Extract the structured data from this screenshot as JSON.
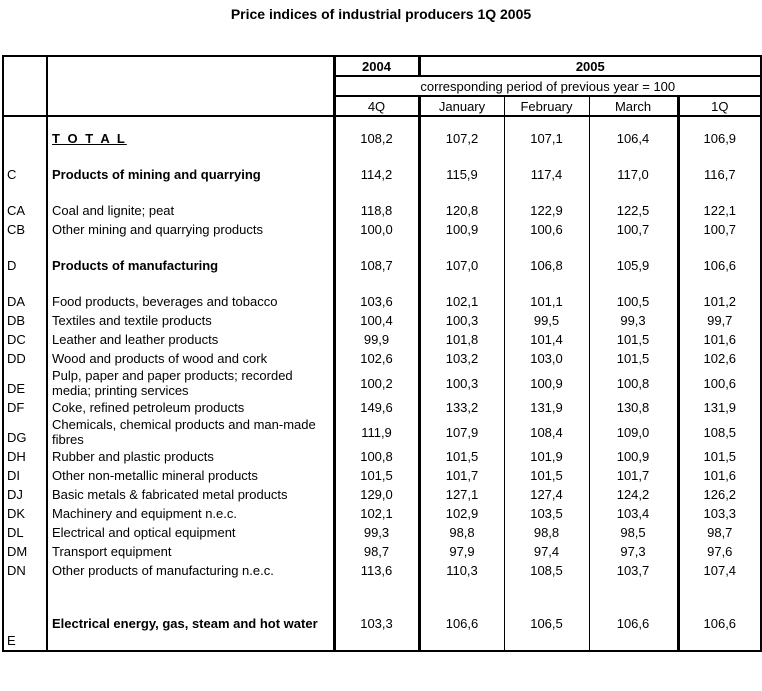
{
  "title": "Price indices of industrial producers 1Q 2005",
  "colors": {
    "text": "#000000",
    "background": "#ffffff",
    "border": "#000000"
  },
  "table": {
    "header": {
      "year_2004": "2004",
      "year_2005": "2005",
      "note": "corresponding period of previous year = 100",
      "periods": [
        "4Q",
        "January",
        "February",
        "March",
        "1Q"
      ]
    },
    "rows": [
      {
        "code": "",
        "name": "T O T A L",
        "style": "total",
        "spacer_before": true,
        "values": [
          "108,2",
          "107,2",
          "107,1",
          "106,4",
          "106,9"
        ]
      },
      {
        "code": "C",
        "name": "Products of mining and quarrying",
        "style": "bold",
        "spacer_before": true,
        "values": [
          "114,2",
          "115,9",
          "117,4",
          "117,0",
          "116,7"
        ]
      },
      {
        "code": "CA",
        "name": "Coal and lignite; peat",
        "style": "normal",
        "spacer_before": true,
        "values": [
          "118,8",
          "120,8",
          "122,9",
          "122,5",
          "122,1"
        ]
      },
      {
        "code": "CB",
        "name": "Other mining and quarrying products",
        "style": "normal",
        "spacer_before": false,
        "values": [
          "100,0",
          "100,9",
          "100,6",
          "100,7",
          "100,7"
        ]
      },
      {
        "code": "D",
        "name": "Products of manufacturing",
        "style": "bold",
        "spacer_before": true,
        "values": [
          "108,7",
          "107,0",
          "106,8",
          "105,9",
          "106,6"
        ]
      },
      {
        "code": "DA",
        "name": "Food products, beverages and tobacco",
        "style": "normal",
        "spacer_before": true,
        "values": [
          "103,6",
          "102,1",
          "101,1",
          "100,5",
          "101,2"
        ]
      },
      {
        "code": "DB",
        "name": "Textiles and textile products",
        "style": "normal",
        "spacer_before": false,
        "values": [
          "100,4",
          "100,3",
          "99,5",
          "99,3",
          "99,7"
        ]
      },
      {
        "code": "DC",
        "name": "Leather and leather products",
        "style": "normal",
        "spacer_before": false,
        "values": [
          "99,9",
          "101,8",
          "101,4",
          "101,5",
          "101,6"
        ]
      },
      {
        "code": "DD",
        "name": "Wood and products of wood and cork",
        "style": "normal",
        "spacer_before": false,
        "values": [
          "102,6",
          "103,2",
          "103,0",
          "101,5",
          "102,6"
        ]
      },
      {
        "code": "DE",
        "name": "Pulp, paper and paper products; recorded media; printing services",
        "style": "normal",
        "spacer_before": false,
        "values": [
          "100,2",
          "100,3",
          "100,9",
          "100,8",
          "100,6"
        ]
      },
      {
        "code": "DF",
        "name": "Coke, refined petroleum products",
        "style": "normal",
        "spacer_before": false,
        "values": [
          "149,6",
          "133,2",
          "131,9",
          "130,8",
          "131,9"
        ]
      },
      {
        "code": "DG",
        "name": "Chemicals, chemical products and man-made fibres",
        "style": "normal",
        "spacer_before": false,
        "values": [
          "111,9",
          "107,9",
          "108,4",
          "109,0",
          "108,5"
        ]
      },
      {
        "code": "DH",
        "name": "Rubber and plastic products",
        "style": "normal",
        "spacer_before": false,
        "values": [
          "100,8",
          "101,5",
          "101,9",
          "100,9",
          "101,5"
        ]
      },
      {
        "code": "DI",
        "name": "Other non-metallic mineral products",
        "style": "normal",
        "spacer_before": false,
        "values": [
          "101,5",
          "101,7",
          "101,5",
          "101,7",
          "101,6"
        ]
      },
      {
        "code": "DJ",
        "name": "Basic metals & fabricated metal products",
        "style": "normal",
        "spacer_before": false,
        "values": [
          "129,0",
          "127,1",
          "127,4",
          "124,2",
          "126,2"
        ]
      },
      {
        "code": "DK",
        "name": "Machinery and equipment n.e.c.",
        "style": "normal",
        "spacer_before": false,
        "values": [
          "102,1",
          "102,9",
          "103,5",
          "103,4",
          "103,3"
        ]
      },
      {
        "code": "DL",
        "name": "Electrical and optical equipment",
        "style": "normal",
        "spacer_before": false,
        "values": [
          "99,3",
          "98,8",
          "98,8",
          "98,5",
          "98,7"
        ]
      },
      {
        "code": "DM",
        "name": "Transport equipment",
        "style": "normal",
        "spacer_before": false,
        "values": [
          "98,7",
          "97,9",
          "97,4",
          "97,3",
          "97,6"
        ]
      },
      {
        "code": "DN",
        "name": "Other products of manufacturing n.e.c.",
        "style": "normal",
        "spacer_before": false,
        "values": [
          "113,6",
          "110,3",
          "108,5",
          "103,7",
          "107,4"
        ]
      },
      {
        "code": "E",
        "name": "Electrical energy, gas, steam and hot water",
        "style": "bold",
        "spacer_before": true,
        "values": [
          "103,3",
          "106,6",
          "106,5",
          "106,6",
          "106,6"
        ]
      }
    ]
  }
}
